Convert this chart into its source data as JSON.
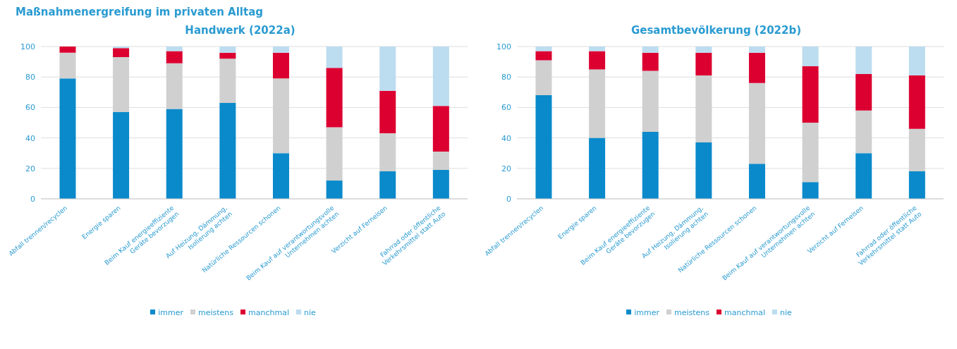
{
  "chart_data": [
    {
      "type": "bar",
      "title": "Handwerk (2022a)",
      "annotations": [
        "Maßnahmenergreifung im privaten Alltag"
      ],
      "stacked": true,
      "grid": "y",
      "legend": "bottom",
      "ylim": [
        0,
        100
      ],
      "yticks": [
        0,
        20,
        40,
        60,
        80,
        100
      ],
      "categories": [
        "Abfall trennen/recyclen",
        "Energie sparen",
        "Beim Kauf energieeffiziente\nGeräte bevorzugen",
        "Auf Heizung, Dämmung,\nIsolierung achten",
        "Natürliche Ressourcen schonen",
        "Beim Kauf auf verantwortungsvolle\nUnternehmen achten",
        "Verzicht auf Ferneisen",
        "Fahrrad oder öffentliche\nVerkehrsmittel statt Auto"
      ],
      "series": [
        {
          "name": "immer",
          "color": "#0a8acb",
          "values": [
            79,
            57,
            59,
            63,
            30,
            12,
            18,
            19
          ]
        },
        {
          "name": "meistens",
          "color": "#d0d0d0",
          "values": [
            17,
            36,
            30,
            29,
            49,
            35,
            25,
            12
          ]
        },
        {
          "name": "manchmal",
          "color": "#dc0031",
          "values": [
            4,
            6,
            8,
            4,
            17,
            39,
            28,
            30
          ]
        },
        {
          "name": "nie",
          "color": "#bcdcef",
          "values": [
            0,
            1,
            3,
            4,
            4,
            14,
            29,
            39
          ]
        }
      ]
    },
    {
      "type": "bar",
      "title": "Gesamtbevölkerung (2022b)",
      "stacked": true,
      "grid": "y",
      "legend": "bottom",
      "ylim": [
        0,
        100
      ],
      "yticks": [
        0,
        20,
        40,
        60,
        80,
        100
      ],
      "categories": [
        "Abfall trennen/recyclen",
        "Energie sparen",
        "Beim Kauf energieeffiziente\nGeräte bevorzugen",
        "Auf Heizung, Dämmung,\nIsolierung achten",
        "Natürliche Ressourcen schonen",
        "Beim Kauf auf verantwortungsvolle\nUnternehmen achten",
        "Verzicht auf Ferneisen",
        "Fahrrad oder öffentliche\nVerkehrsmittel statt Auto"
      ],
      "series": [
        {
          "name": "immer",
          "color": "#0a8acb",
          "values": [
            68,
            40,
            44,
            37,
            23,
            11,
            30,
            18
          ]
        },
        {
          "name": "meistens",
          "color": "#d0d0d0",
          "values": [
            23,
            45,
            40,
            44,
            53,
            39,
            28,
            28
          ]
        },
        {
          "name": "manchmal",
          "color": "#dc0031",
          "values": [
            6,
            12,
            12,
            15,
            20,
            37,
            24,
            35
          ]
        },
        {
          "name": "nie",
          "color": "#bcdcef",
          "values": [
            3,
            3,
            4,
            4,
            4,
            13,
            18,
            19
          ]
        }
      ]
    }
  ]
}
